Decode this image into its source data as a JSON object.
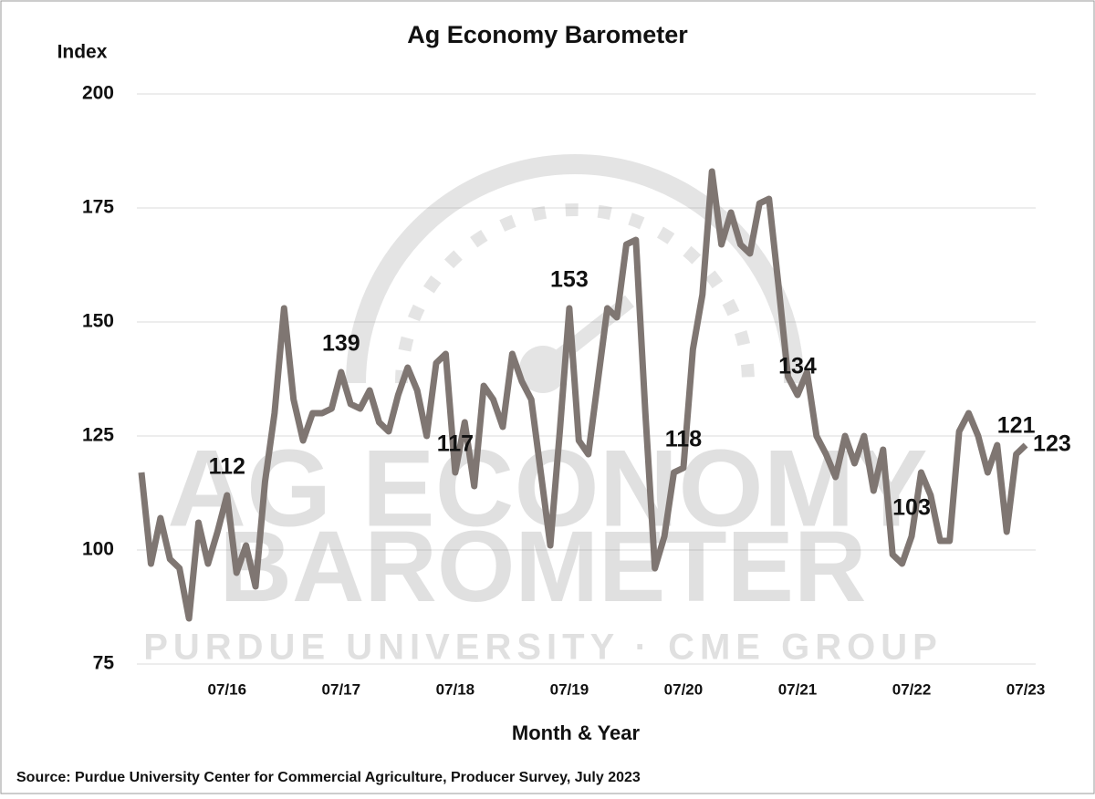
{
  "chart_data": {
    "type": "line",
    "title": "Ag Economy Barometer",
    "y_label": "Index",
    "x_label": "Month & Year",
    "source": "Source: Purdue University Center for Commercial Agriculture, Producer Survey, July 2023",
    "watermark": [
      "AG ECONOMY",
      "BAROMETER",
      "PURDUE UNIVERSITY · CME GROUP"
    ],
    "categories": [
      null,
      null,
      null,
      null,
      null,
      null,
      null,
      null,
      null,
      "07/16",
      null,
      null,
      null,
      null,
      null,
      null,
      null,
      null,
      null,
      null,
      null,
      "07/17",
      null,
      null,
      null,
      null,
      null,
      null,
      null,
      null,
      null,
      null,
      null,
      "07/18",
      null,
      null,
      null,
      null,
      null,
      null,
      null,
      null,
      null,
      null,
      null,
      "07/19",
      null,
      null,
      null,
      null,
      null,
      null,
      null,
      null,
      null,
      null,
      null,
      "07/20",
      null,
      null,
      null,
      null,
      null,
      null,
      null,
      null,
      null,
      null,
      null,
      "07/21",
      null,
      null,
      null,
      null,
      null,
      null,
      null,
      null,
      null,
      null,
      null,
      "07/22",
      null,
      null,
      null,
      null,
      null,
      null,
      null,
      null,
      null,
      null,
      null,
      "07/23"
    ],
    "series": [
      {
        "name": "Index",
        "color": "#7f7672",
        "values": [
          117,
          97,
          107,
          98,
          96,
          85,
          106,
          97,
          104,
          112,
          95,
          101,
          92,
          115,
          130,
          153,
          133,
          124,
          130,
          130,
          131,
          139,
          132,
          131,
          135,
          128,
          126,
          134,
          140,
          135,
          125,
          141,
          143,
          117,
          128,
          114,
          136,
          133,
          127,
          143,
          137,
          133,
          117,
          101,
          126,
          153,
          124,
          121,
          137,
          153,
          151,
          167,
          168,
          130,
          96,
          103,
          117,
          118,
          144,
          156,
          183,
          167,
          174,
          167,
          165,
          176,
          177,
          158,
          138,
          134,
          139,
          125,
          121,
          116,
          125,
          119,
          125,
          113,
          122,
          99,
          97,
          103,
          117,
          112,
          102,
          102,
          126,
          130,
          125,
          117,
          123,
          104,
          121,
          123
        ]
      }
    ],
    "data_labels": [
      9,
      21,
      33,
      45,
      57,
      69,
      81,
      92,
      93
    ],
    "ylim": [
      75,
      200
    ],
    "yticks": [
      75,
      100,
      125,
      150,
      175,
      200
    ],
    "grid": true
  }
}
